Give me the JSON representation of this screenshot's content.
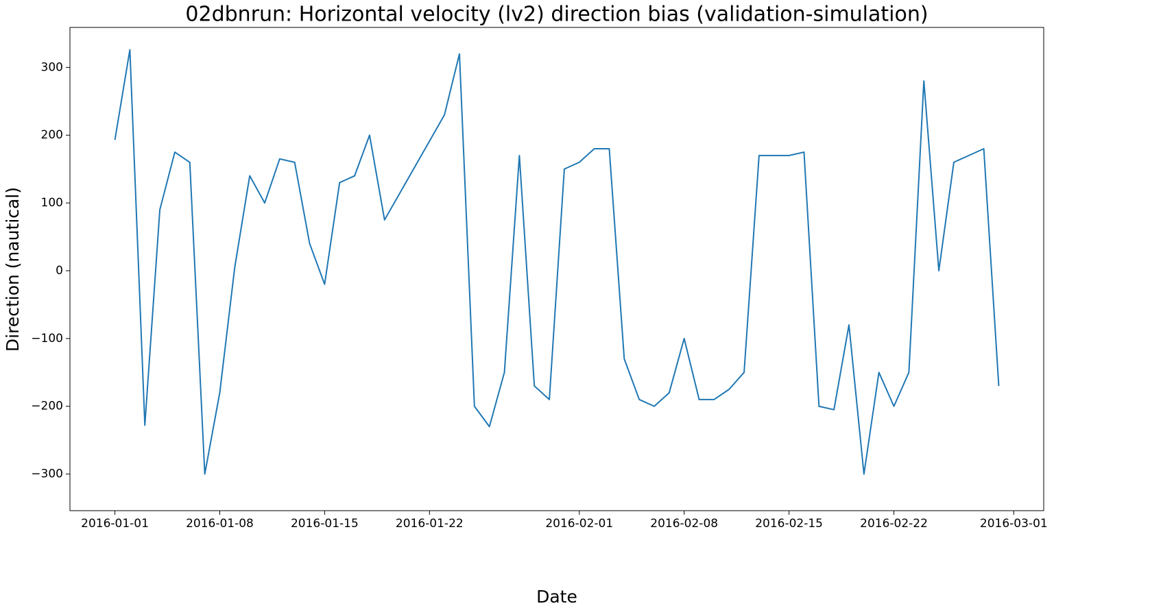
{
  "chart_data": {
    "type": "line",
    "title": "02dbnrun: Horizontal velocity (lv2) direction bias (validation-simulation)",
    "x_label": "Date",
    "y_label": "Direction (nautical)",
    "color": "#1f77b4",
    "x": [
      "2016-01-01",
      "2016-01-02",
      "2016-01-03",
      "2016-01-04",
      "2016-01-05",
      "2016-01-06",
      "2016-01-07",
      "2016-01-08",
      "2016-01-09",
      "2016-01-10",
      "2016-01-11",
      "2016-01-12",
      "2016-01-13",
      "2016-01-14",
      "2016-01-15",
      "2016-01-16",
      "2016-01-17",
      "2016-01-18",
      "2016-01-19",
      "2016-01-23",
      "2016-01-24",
      "2016-01-25",
      "2016-01-26",
      "2016-01-27",
      "2016-01-28",
      "2016-01-29",
      "2016-01-30",
      "2016-01-31",
      "2016-02-01",
      "2016-02-02",
      "2016-02-03",
      "2016-02-04",
      "2016-02-05",
      "2016-02-06",
      "2016-02-07",
      "2016-02-08",
      "2016-02-09",
      "2016-02-10",
      "2016-02-11",
      "2016-02-12",
      "2016-02-13",
      "2016-02-14",
      "2016-02-15",
      "2016-02-16",
      "2016-02-17",
      "2016-02-18",
      "2016-02-19",
      "2016-02-20",
      "2016-02-21",
      "2016-02-22",
      "2016-02-23",
      "2016-02-24",
      "2016-02-25",
      "2016-02-26",
      "2016-02-27",
      "2016-02-28",
      "2016-02-29"
    ],
    "values": [
      193,
      326,
      -228,
      90,
      175,
      160,
      -300,
      -180,
      5,
      140,
      100,
      165,
      160,
      40,
      -20,
      130,
      140,
      200,
      75,
      230,
      320,
      -200,
      -230,
      -150,
      170,
      -170,
      -190,
      150,
      160,
      180,
      180,
      -130,
      -190,
      -200,
      -180,
      -100,
      -190,
      -190,
      -175,
      -150,
      170,
      170,
      170,
      175,
      -200,
      -205,
      -80,
      -300,
      -150,
      -200,
      -150,
      280,
      0,
      160,
      170,
      180,
      -170
    ],
    "xlim": [
      "2015-12-29",
      "2016-03-03"
    ],
    "xticks": [
      "2016-01-01",
      "2016-01-08",
      "2016-01-15",
      "2016-01-22",
      "2016-02-01",
      "2016-02-08",
      "2016-02-15",
      "2016-02-22",
      "2016-03-01"
    ],
    "ylim": [
      -354,
      359
    ],
    "yticks": [
      {
        "value": -300,
        "label": "−300"
      },
      {
        "value": -200,
        "label": "−200"
      },
      {
        "value": -100,
        "label": "−100"
      },
      0,
      100,
      200,
      300
    ],
    "grid": false
  }
}
